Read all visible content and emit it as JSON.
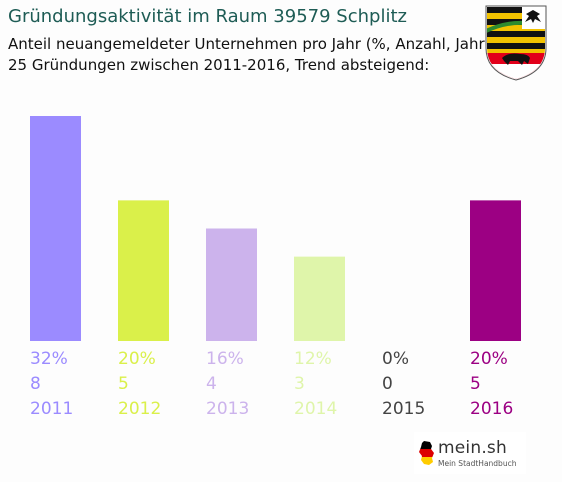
{
  "header": {
    "title": "Gründungsaktivität im Raum 39579 Schplitz",
    "subtitle_line1": "Anteil neuangemeldeter Unternehmen pro Jahr (%, Anzahl, Jahr)",
    "subtitle_line2": "25 Gründungen zwischen 2011-2016, Trend absteigend:"
  },
  "crest": {
    "icon": "coat-of-arms-icon",
    "colors": [
      "#000000",
      "#f2c200",
      "#e2001a",
      "#ffffff",
      "#2e8b2e"
    ]
  },
  "chart_data": {
    "type": "bar",
    "categories": [
      "2011",
      "2012",
      "2013",
      "2014",
      "2015",
      "2016"
    ],
    "percent_labels": [
      "32%",
      "20%",
      "16%",
      "12%",
      "0%",
      "20%"
    ],
    "values": [
      8,
      5,
      4,
      3,
      0,
      5
    ],
    "count_labels": [
      "8",
      "5",
      "4",
      "3",
      "0",
      "5"
    ],
    "colors": [
      "#9b8bff",
      "#daf04a",
      "#ccb3ec",
      "#dff5aa",
      "#444444",
      "#9c0083"
    ],
    "ylim": [
      0,
      8
    ],
    "grid": false,
    "legend": "none"
  },
  "brand": {
    "name": "mein.sh",
    "tagline": "Mein StadtHandbuch",
    "icon": "germany-map-icon",
    "map_colors": [
      "#000000",
      "#dd0000",
      "#ffcc00"
    ]
  }
}
